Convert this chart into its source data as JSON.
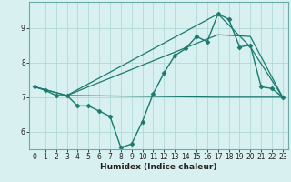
{
  "title": "",
  "xlabel": "Humidex (Indice chaleur)",
  "ylabel": "",
  "bg_color": "#d8f0f0",
  "line_color": "#1a7a6e",
  "grid_color": "#aad4d4",
  "spine_color": "#6aaaaa",
  "xlim": [
    -0.5,
    23.5
  ],
  "ylim": [
    5.5,
    9.75
  ],
  "yticks": [
    6,
    7,
    8,
    9
  ],
  "xticks": [
    0,
    1,
    2,
    3,
    4,
    5,
    6,
    7,
    8,
    9,
    10,
    11,
    12,
    13,
    14,
    15,
    16,
    17,
    18,
    19,
    20,
    21,
    22,
    23
  ],
  "series": [
    {
      "x": [
        0,
        1,
        2,
        3,
        4,
        5,
        6,
        7,
        8,
        9,
        10,
        11,
        12,
        13,
        14,
        15,
        16,
        17,
        18,
        19,
        20,
        21,
        22,
        23
      ],
      "y": [
        7.3,
        7.2,
        7.05,
        7.05,
        6.75,
        6.75,
        6.6,
        6.45,
        5.55,
        5.65,
        6.3,
        7.1,
        7.7,
        8.2,
        8.4,
        8.75,
        8.6,
        9.4,
        9.25,
        8.45,
        8.5,
        7.3,
        7.25,
        7.0
      ],
      "marker": "D",
      "markersize": 2.5,
      "linewidth": 1.0
    },
    {
      "x": [
        0,
        3,
        17,
        20,
        23
      ],
      "y": [
        7.3,
        7.05,
        9.4,
        8.45,
        7.0
      ],
      "marker": null,
      "linewidth": 0.9
    },
    {
      "x": [
        0,
        3,
        17,
        20,
        23
      ],
      "y": [
        7.3,
        7.05,
        8.8,
        8.75,
        7.0
      ],
      "marker": null,
      "linewidth": 0.9
    },
    {
      "x": [
        3,
        17,
        20,
        23
      ],
      "y": [
        7.05,
        7.0,
        7.0,
        7.0
      ],
      "marker": null,
      "linewidth": 0.9
    }
  ]
}
